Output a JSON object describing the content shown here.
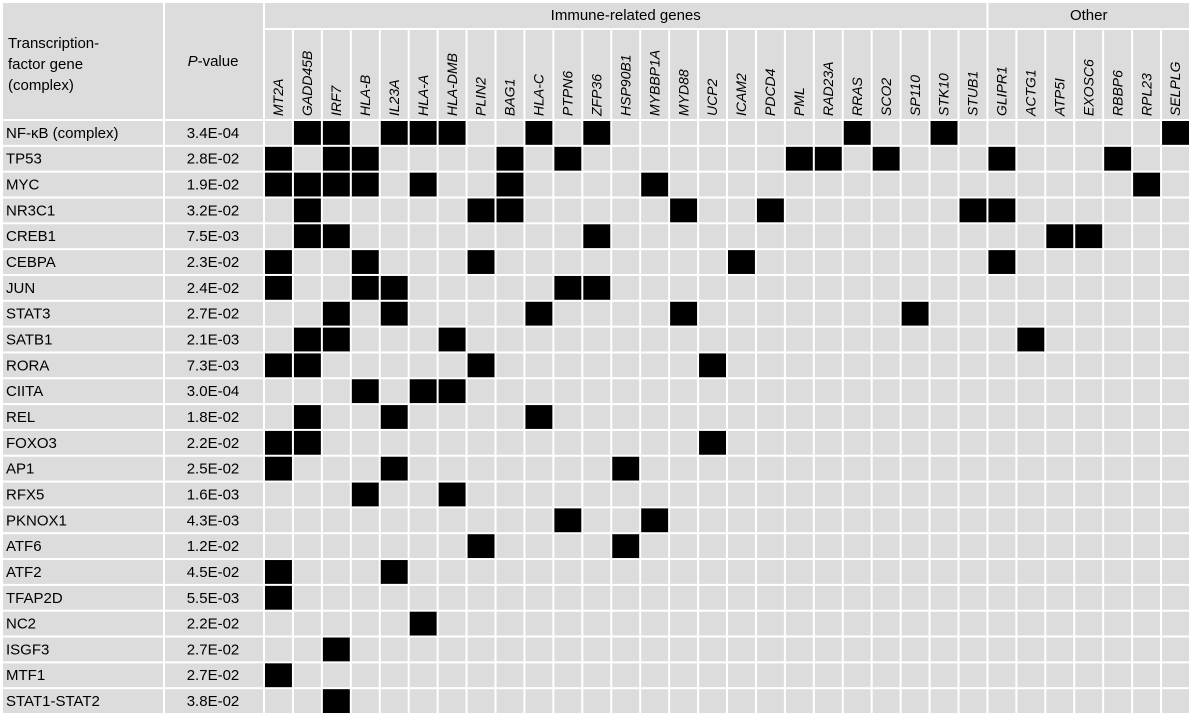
{
  "table": {
    "row_header": [
      "Transcription-",
      "factor gene",
      "(complex)"
    ],
    "pvalue_header": {
      "italic": "P",
      "rest": "-value"
    },
    "groups": [
      {
        "label": "Immune-related genes",
        "genes": [
          "MT2A",
          "GADD45B",
          "IRF7",
          "HLA-B",
          "IL23A",
          "HLA-A",
          "HLA-DMB",
          "PLIN2",
          "BAG1",
          "HLA-C",
          "PTPN6",
          "ZFP36",
          "HSP90B1",
          "MYBBP1A",
          "MYD88",
          "UCP2",
          "ICAM2",
          "PDCD4",
          "PML",
          "RAD23A",
          "RRAS",
          "SCO2",
          "SP110",
          "STK10",
          "STUB1"
        ]
      },
      {
        "label": "Other",
        "genes": [
          "GLIPR1",
          "ACTG1",
          "ATP5I",
          "EXOSC6",
          "RBBP6",
          "RPL23",
          "SELPLG"
        ]
      }
    ],
    "colors": {
      "hit": "#000000",
      "empty": "#dcdcdc"
    },
    "rows": [
      {
        "tf": "NF-κB (complex)",
        "p_value": "3.4E-04",
        "cells": [
          0,
          1,
          1,
          0,
          1,
          1,
          1,
          0,
          0,
          1,
          0,
          1,
          0,
          0,
          0,
          0,
          0,
          0,
          0,
          0,
          1,
          0,
          0,
          1,
          0,
          0,
          0,
          0,
          0,
          0,
          0,
          1
        ]
      },
      {
        "tf": "TP53",
        "p_value": "2.8E-02",
        "cells": [
          1,
          0,
          1,
          1,
          0,
          0,
          0,
          0,
          1,
          0,
          1,
          0,
          0,
          0,
          0,
          0,
          0,
          0,
          1,
          1,
          0,
          1,
          0,
          0,
          0,
          1,
          0,
          0,
          0,
          1,
          0,
          0
        ]
      },
      {
        "tf": "MYC",
        "p_value": "1.9E-02",
        "cells": [
          1,
          1,
          1,
          1,
          0,
          1,
          0,
          0,
          1,
          0,
          0,
          0,
          0,
          1,
          0,
          0,
          0,
          0,
          0,
          0,
          0,
          0,
          0,
          0,
          0,
          0,
          0,
          0,
          0,
          0,
          1,
          0
        ]
      },
      {
        "tf": "NR3C1",
        "p_value": "3.2E-02",
        "cells": [
          0,
          1,
          0,
          0,
          0,
          0,
          0,
          1,
          1,
          0,
          0,
          0,
          0,
          0,
          1,
          0,
          0,
          1,
          0,
          0,
          0,
          0,
          0,
          0,
          1,
          1,
          0,
          0,
          0,
          0,
          0,
          0
        ]
      },
      {
        "tf": "CREB1",
        "p_value": "7.5E-03",
        "cells": [
          0,
          1,
          1,
          0,
          0,
          0,
          0,
          0,
          0,
          0,
          0,
          1,
          0,
          0,
          0,
          0,
          0,
          0,
          0,
          0,
          0,
          0,
          0,
          0,
          0,
          0,
          0,
          1,
          1,
          0,
          0,
          0
        ]
      },
      {
        "tf": "CEBPA",
        "p_value": "2.3E-02",
        "cells": [
          1,
          0,
          0,
          1,
          0,
          0,
          0,
          1,
          0,
          0,
          0,
          0,
          0,
          0,
          0,
          0,
          1,
          0,
          0,
          0,
          0,
          0,
          0,
          0,
          0,
          1,
          0,
          0,
          0,
          0,
          0,
          0
        ]
      },
      {
        "tf": "JUN",
        "p_value": "2.4E-02",
        "cells": [
          1,
          0,
          0,
          1,
          1,
          0,
          0,
          0,
          0,
          0,
          1,
          1,
          0,
          0,
          0,
          0,
          0,
          0,
          0,
          0,
          0,
          0,
          0,
          0,
          0,
          0,
          0,
          0,
          0,
          0,
          0,
          0
        ]
      },
      {
        "tf": "STAT3",
        "p_value": "2.7E-02",
        "cells": [
          0,
          0,
          1,
          0,
          1,
          0,
          0,
          0,
          0,
          1,
          0,
          0,
          0,
          0,
          1,
          0,
          0,
          0,
          0,
          0,
          0,
          0,
          1,
          0,
          0,
          0,
          0,
          0,
          0,
          0,
          0,
          0
        ]
      },
      {
        "tf": "SATB1",
        "p_value": "2.1E-03",
        "cells": [
          0,
          1,
          1,
          0,
          0,
          0,
          1,
          0,
          0,
          0,
          0,
          0,
          0,
          0,
          0,
          0,
          0,
          0,
          0,
          0,
          0,
          0,
          0,
          0,
          0,
          0,
          1,
          0,
          0,
          0,
          0,
          0
        ]
      },
      {
        "tf": "RORA",
        "p_value": "7.3E-03",
        "cells": [
          1,
          1,
          0,
          0,
          0,
          0,
          0,
          1,
          0,
          0,
          0,
          0,
          0,
          0,
          0,
          1,
          0,
          0,
          0,
          0,
          0,
          0,
          0,
          0,
          0,
          0,
          0,
          0,
          0,
          0,
          0,
          0
        ]
      },
      {
        "tf": "CIITA",
        "p_value": "3.0E-04",
        "cells": [
          0,
          0,
          0,
          1,
          0,
          1,
          1,
          0,
          0,
          0,
          0,
          0,
          0,
          0,
          0,
          0,
          0,
          0,
          0,
          0,
          0,
          0,
          0,
          0,
          0,
          0,
          0,
          0,
          0,
          0,
          0,
          0
        ]
      },
      {
        "tf": "REL",
        "p_value": "1.8E-02",
        "cells": [
          0,
          1,
          0,
          0,
          1,
          0,
          0,
          0,
          0,
          1,
          0,
          0,
          0,
          0,
          0,
          0,
          0,
          0,
          0,
          0,
          0,
          0,
          0,
          0,
          0,
          0,
          0,
          0,
          0,
          0,
          0,
          0
        ]
      },
      {
        "tf": "FOXO3",
        "p_value": "2.2E-02",
        "cells": [
          1,
          1,
          0,
          0,
          0,
          0,
          0,
          0,
          0,
          0,
          0,
          0,
          0,
          0,
          0,
          1,
          0,
          0,
          0,
          0,
          0,
          0,
          0,
          0,
          0,
          0,
          0,
          0,
          0,
          0,
          0,
          0
        ]
      },
      {
        "tf": "AP1",
        "p_value": "2.5E-02",
        "cells": [
          1,
          0,
          0,
          0,
          1,
          0,
          0,
          0,
          0,
          0,
          0,
          0,
          1,
          0,
          0,
          0,
          0,
          0,
          0,
          0,
          0,
          0,
          0,
          0,
          0,
          0,
          0,
          0,
          0,
          0,
          0,
          0
        ]
      },
      {
        "tf": "RFX5",
        "p_value": "1.6E-03",
        "cells": [
          0,
          0,
          0,
          1,
          0,
          0,
          1,
          0,
          0,
          0,
          0,
          0,
          0,
          0,
          0,
          0,
          0,
          0,
          0,
          0,
          0,
          0,
          0,
          0,
          0,
          0,
          0,
          0,
          0,
          0,
          0,
          0
        ]
      },
      {
        "tf": "PKNOX1",
        "p_value": "4.3E-03",
        "cells": [
          0,
          0,
          0,
          0,
          0,
          0,
          0,
          0,
          0,
          0,
          1,
          0,
          0,
          1,
          0,
          0,
          0,
          0,
          0,
          0,
          0,
          0,
          0,
          0,
          0,
          0,
          0,
          0,
          0,
          0,
          0,
          0
        ]
      },
      {
        "tf": "ATF6",
        "p_value": "1.2E-02",
        "cells": [
          0,
          0,
          0,
          0,
          0,
          0,
          0,
          1,
          0,
          0,
          0,
          0,
          1,
          0,
          0,
          0,
          0,
          0,
          0,
          0,
          0,
          0,
          0,
          0,
          0,
          0,
          0,
          0,
          0,
          0,
          0,
          0
        ]
      },
      {
        "tf": "ATF2",
        "p_value": "4.5E-02",
        "cells": [
          1,
          0,
          0,
          0,
          1,
          0,
          0,
          0,
          0,
          0,
          0,
          0,
          0,
          0,
          0,
          0,
          0,
          0,
          0,
          0,
          0,
          0,
          0,
          0,
          0,
          0,
          0,
          0,
          0,
          0,
          0,
          0
        ]
      },
      {
        "tf": "TFAP2D",
        "p_value": "5.5E-03",
        "cells": [
          1,
          0,
          0,
          0,
          0,
          0,
          0,
          0,
          0,
          0,
          0,
          0,
          0,
          0,
          0,
          0,
          0,
          0,
          0,
          0,
          0,
          0,
          0,
          0,
          0,
          0,
          0,
          0,
          0,
          0,
          0,
          0
        ]
      },
      {
        "tf": "NC2",
        "p_value": "2.2E-02",
        "cells": [
          0,
          0,
          0,
          0,
          0,
          1,
          0,
          0,
          0,
          0,
          0,
          0,
          0,
          0,
          0,
          0,
          0,
          0,
          0,
          0,
          0,
          0,
          0,
          0,
          0,
          0,
          0,
          0,
          0,
          0,
          0,
          0
        ]
      },
      {
        "tf": "ISGF3",
        "p_value": "2.7E-02",
        "cells": [
          0,
          0,
          1,
          0,
          0,
          0,
          0,
          0,
          0,
          0,
          0,
          0,
          0,
          0,
          0,
          0,
          0,
          0,
          0,
          0,
          0,
          0,
          0,
          0,
          0,
          0,
          0,
          0,
          0,
          0,
          0,
          0
        ]
      },
      {
        "tf": "MTF1",
        "p_value": "2.7E-02",
        "cells": [
          1,
          0,
          0,
          0,
          0,
          0,
          0,
          0,
          0,
          0,
          0,
          0,
          0,
          0,
          0,
          0,
          0,
          0,
          0,
          0,
          0,
          0,
          0,
          0,
          0,
          0,
          0,
          0,
          0,
          0,
          0,
          0
        ]
      },
      {
        "tf": "STAT1-STAT2",
        "p_value": "3.8E-02",
        "cells": [
          0,
          0,
          1,
          0,
          0,
          0,
          0,
          0,
          0,
          0,
          0,
          0,
          0,
          0,
          0,
          0,
          0,
          0,
          0,
          0,
          0,
          0,
          0,
          0,
          0,
          0,
          0,
          0,
          0,
          0,
          0,
          0
        ]
      }
    ]
  }
}
